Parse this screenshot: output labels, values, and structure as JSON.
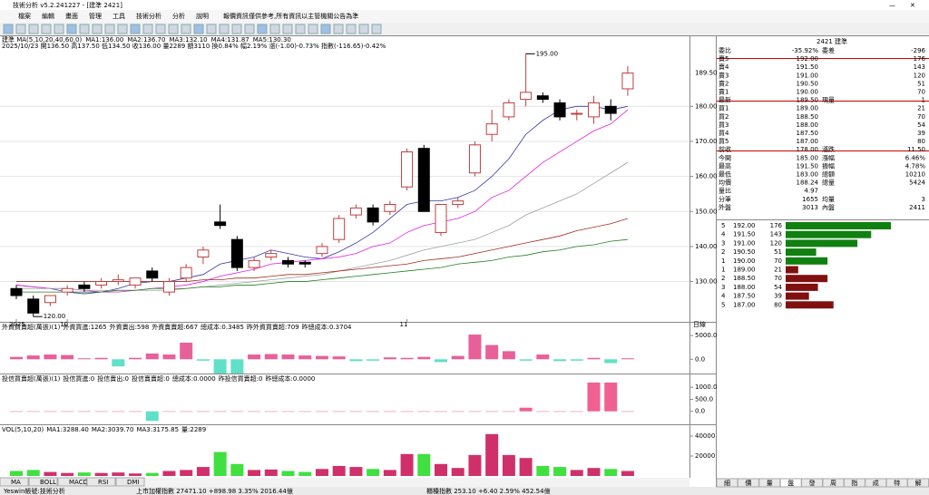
{
  "window": {
    "title": "技術分析 v5.2.241227 - [建準 2421]",
    "menu": [
      "檔案",
      "編輯",
      "畫面",
      "管理",
      "工具",
      "技術分析",
      "分析",
      "說明"
    ],
    "notice": "報價資訊僅供參考,所有資訊以主管機關公告為準"
  },
  "chart_data": {
    "type": "candlestick",
    "header": [
      {
        "text": "建準 MA(5,10,20,40,60,0)",
        "color": "#000000"
      },
      {
        "text": "MA1:136.00",
        "color": "#3838a0"
      },
      {
        "text": "MA2:136.70",
        "color": "#e020e0"
      },
      {
        "text": "MA3:132.10",
        "color": "#909090"
      },
      {
        "text": "MA4:131.87",
        "color": "#a03020"
      },
      {
        "text": "MA5:130.30",
        "color": "#208020"
      }
    ],
    "info": "2025/10/23 開136.50 高137.50 低134.50 收136.00 量2289 額3110 換0.84% 幅2.19% 漲(-1.00)-0.73% 指數(-116.65)-0.42%",
    "period": "日線",
    "up_color": "#c04040",
    "down_color": "#000000",
    "ylim": [
      118.5,
      200
    ],
    "yticks": [
      {
        "value": 130,
        "label": "130.00"
      },
      {
        "value": 140,
        "label": "140.00"
      },
      {
        "value": 150,
        "label": "150.00"
      },
      {
        "value": 160,
        "label": "160.00"
      },
      {
        "value": 170,
        "label": "170.00"
      },
      {
        "value": 180,
        "label": "180.00"
      }
    ],
    "last": {
      "value": 189.5,
      "label": "189.50"
    },
    "annotations": [
      {
        "value": 195,
        "label": "195.00"
      },
      {
        "value": 120,
        "label": "120.00"
      }
    ],
    "x_labels": [
      {
        "index": 0,
        "label": "2025"
      },
      {
        "index": 3,
        "label": "10"
      },
      {
        "index": 23,
        "label": "11"
      }
    ],
    "open": [
      128,
      125,
      124,
      127,
      129,
      129,
      130,
      129,
      133,
      127,
      131,
      137,
      147,
      142,
      134,
      137,
      136,
      135.5,
      138,
      142,
      149,
      151,
      150,
      157,
      168,
      144,
      152,
      161,
      172,
      177,
      182,
      183,
      181,
      178,
      177,
      180,
      185
    ],
    "high": [
      129,
      126,
      126,
      129,
      130,
      131,
      132,
      131,
      134,
      131,
      135,
      140,
      152,
      143,
      137,
      139,
      137,
      136,
      141,
      149,
      152,
      152,
      153,
      168,
      169,
      152,
      154,
      170,
      179,
      182,
      195,
      184,
      182,
      179,
      183,
      182,
      191.5
    ],
    "low": [
      125,
      120,
      123,
      126,
      127,
      128,
      129,
      128,
      130,
      126,
      130,
      135,
      145,
      133,
      133,
      136,
      134,
      134,
      137,
      141,
      148,
      146,
      149,
      156,
      150,
      143,
      151,
      160,
      170,
      176,
      180,
      181,
      176,
      176,
      175,
      176,
      183
    ],
    "close": [
      126,
      121,
      126,
      128,
      128,
      130,
      130.5,
      131,
      131,
      130,
      134,
      139,
      146,
      134,
      136,
      138,
      135,
      135,
      140,
      148,
      151,
      147,
      152,
      167,
      150,
      152,
      153,
      169,
      175,
      181,
      184,
      182,
      177,
      178,
      181,
      178,
      189.5
    ],
    "series": [
      {
        "name": "MA1",
        "color": "#3838a0",
        "values": [
          129,
          128.5,
          128,
          127,
          126.5,
          127,
          128,
          129.5,
          130,
          130,
          131,
          132,
          135,
          136,
          137,
          139,
          138,
          137,
          136.5,
          138.5,
          141,
          144,
          148,
          152,
          153,
          153,
          154,
          156,
          160,
          165,
          172,
          176,
          179,
          180,
          180,
          179,
          180
        ]
      },
      {
        "name": "MA2",
        "color": "#e020e0",
        "values": [
          129,
          128.5,
          128,
          128,
          127.5,
          127,
          127,
          127.5,
          128,
          128.5,
          129,
          130,
          131.5,
          132.5,
          133.5,
          135,
          135.5,
          136,
          136.5,
          137,
          138,
          140,
          141,
          144,
          146,
          147,
          148,
          150,
          154,
          156,
          160,
          164,
          167,
          170,
          173,
          175,
          179
        ]
      },
      {
        "name": "MA3",
        "color": "#a0a0a0",
        "values": [
          128,
          128,
          128,
          128,
          127.5,
          127.5,
          127.5,
          127.5,
          127.5,
          127.5,
          128,
          128.5,
          129,
          129.5,
          130,
          130.5,
          131,
          131.5,
          132,
          133,
          134,
          135,
          136,
          137.5,
          139,
          140,
          141,
          142,
          144,
          146,
          149,
          151,
          153,
          155,
          158,
          161,
          164
        ]
      },
      {
        "name": "MA4",
        "color": "#a03020",
        "values": [
          130,
          130,
          130,
          130,
          130,
          130,
          130,
          130,
          130,
          130,
          130,
          130.5,
          130.5,
          131,
          131,
          131.5,
          132,
          132,
          132.5,
          133,
          133.5,
          134,
          134.5,
          135,
          136,
          136.5,
          137,
          138,
          139,
          140,
          141,
          142,
          143,
          144.5,
          145.5,
          146.5,
          148
        ]
      },
      {
        "name": "MA5",
        "color": "#208020",
        "values": [
          127,
          127,
          127,
          127,
          127,
          127,
          127.5,
          127.5,
          128,
          128,
          128,
          128.5,
          128.5,
          129,
          129,
          129.5,
          130,
          130,
          130.5,
          131,
          131.5,
          132,
          132.5,
          133,
          133.5,
          134,
          135,
          135.5,
          136,
          137,
          137.5,
          138.5,
          139,
          140,
          140.5,
          141.5,
          142
        ]
      }
    ]
  },
  "foreign": {
    "type": "bar",
    "header": [
      "外資買賣超(萬張)(1)",
      "外資買進:1265",
      "外資賣出:598",
      "外資賣賣超:667",
      "總成本:0.3485",
      "昨外資買賣超:709",
      "昨總成本:0.3704"
    ],
    "pos_color": "#e8609a",
    "neg_color": "#60e0c8",
    "ylim": [
      -3000,
      7500
    ],
    "yticks": [
      {
        "value": 5000,
        "label": "5000.0"
      },
      {
        "value": 0,
        "label": "0.0"
      }
    ],
    "values": [
      500,
      800,
      1000,
      900,
      200,
      300,
      -1500,
      300,
      1200,
      1000,
      3500,
      -300,
      -3000,
      -3000,
      1000,
      1100,
      1000,
      800,
      700,
      600,
      -400,
      -300,
      400,
      300,
      500,
      -600,
      700,
      5200,
      3000,
      1700,
      -300,
      1000,
      -400,
      -300,
      300,
      -800,
      200
    ]
  },
  "prop": {
    "type": "bar",
    "header": [
      "投信買賣超(萬張)(1)",
      "投信買進:0",
      "投信賣出:0",
      "投信賣賣超:0",
      "總成本:0.0000",
      "昨投信買賣超:0",
      "昨總成本:0.0000"
    ],
    "pos_color": "#f06090",
    "neg_color": "#60e0c8",
    "ylim": [
      -540,
      1500
    ],
    "yticks": [
      {
        "value": 1000,
        "label": "1000.0"
      },
      {
        "value": 500,
        "label": "500.0"
      },
      {
        "value": 0,
        "label": "0.0"
      }
    ],
    "values": [
      0,
      0,
      0,
      0,
      0,
      0,
      0,
      0,
      -400,
      0,
      0,
      0,
      0,
      0,
      0,
      0,
      0,
      0,
      0,
      0,
      0,
      0,
      0,
      0,
      0,
      0,
      0,
      0,
      0,
      0,
      150,
      0,
      0,
      0,
      1200,
      1200,
      0
    ]
  },
  "volume": {
    "type": "bar",
    "header": [
      "VOL(5,10,20)",
      "MA1:3288.40",
      "MA2:3039.70",
      "MA3:3175.85",
      "量:2289"
    ],
    "up_color": "#d0306a",
    "down_color": "#40e040",
    "ylim": [
      0,
      50000
    ],
    "yticks": [
      40000,
      20000
    ],
    "values": [
      5000,
      6000,
      4000,
      3000,
      3500,
      3000,
      3500,
      2500,
      3000,
      5000,
      6000,
      9000,
      24000,
      12000,
      6000,
      6500,
      5000,
      4000,
      7000,
      10000,
      9000,
      7000,
      6000,
      22000,
      22000,
      12000,
      8000,
      21000,
      42000,
      21000,
      18000,
      10000,
      9000,
      6000,
      8000,
      7000,
      5000
    ]
  },
  "indicator_tabs": [
    "MA",
    "BOLL",
    "MACD",
    "RSI",
    "DMI"
  ],
  "quote": {
    "title": "2421 建準",
    "rows": [
      [
        "委比",
        "-35.92%",
        "委差",
        "-296"
      ],
      [
        "賣5",
        "192.00",
        "176"
      ],
      [
        "賣4",
        "191.50",
        "143"
      ],
      [
        "賣3",
        "191.00",
        "120"
      ],
      [
        "賣2",
        "190.50",
        "51"
      ],
      [
        "賣1",
        "190.00",
        "70"
      ],
      [
        "最新",
        "189.50",
        "現量",
        "1"
      ],
      [
        "買1",
        "189.00",
        "21"
      ],
      [
        "買2",
        "188.50",
        "70"
      ],
      [
        "買3",
        "188.00",
        "54"
      ],
      [
        "買4",
        "187.50",
        "39"
      ],
      [
        "買5",
        "187.00",
        "80"
      ],
      [
        "前收",
        "178.00",
        "漲跌",
        "11.50"
      ],
      [
        "今開",
        "185.00",
        "漲幅",
        "6.46%"
      ],
      [
        "最高",
        "191.50",
        "振幅",
        "4.78%"
      ],
      [
        "最低",
        "183.00",
        "總額",
        "10210"
      ],
      [
        "均價",
        "188.24",
        "總量",
        "5424"
      ],
      [
        "量比",
        "4.97"
      ],
      [
        "分筆",
        "1655",
        "均量",
        "3"
      ],
      [
        "外盤",
        "3013",
        "內盤",
        "2411"
      ]
    ],
    "depth": [
      {
        "level": 5,
        "price": "192.00",
        "qty": 176,
        "color": "#108010"
      },
      {
        "level": 4,
        "price": "191.50",
        "qty": 143,
        "color": "#108010"
      },
      {
        "level": 3,
        "price": "191.00",
        "qty": 120,
        "color": "#108010"
      },
      {
        "level": 2,
        "price": "190.50",
        "qty": 51,
        "color": "#108010"
      },
      {
        "level": 1,
        "price": "190.00",
        "qty": 70,
        "color": "#108010"
      },
      {
        "level": 1,
        "price": "189.00",
        "qty": 21,
        "color": "#801010"
      },
      {
        "level": 2,
        "price": "188.50",
        "qty": 70,
        "color": "#801010"
      },
      {
        "level": 3,
        "price": "188.00",
        "qty": 54,
        "color": "#801010"
      },
      {
        "level": 4,
        "price": "187.50",
        "qty": 39,
        "color": "#801010"
      },
      {
        "level": 5,
        "price": "187.00",
        "qty": 80,
        "color": "#801010"
      }
    ],
    "tabs": [
      "細",
      "價",
      "量",
      "盤",
      "發",
      "周",
      "指",
      "成",
      "特",
      "解"
    ]
  },
  "ticker": [
    "Yeswin帳號:技術分析",
    "上市加權指數 27471.10 +898.98 3.35% 2016.44億",
    "櫃檯指數 253.10 +6.40 2.59% 452.54億"
  ]
}
